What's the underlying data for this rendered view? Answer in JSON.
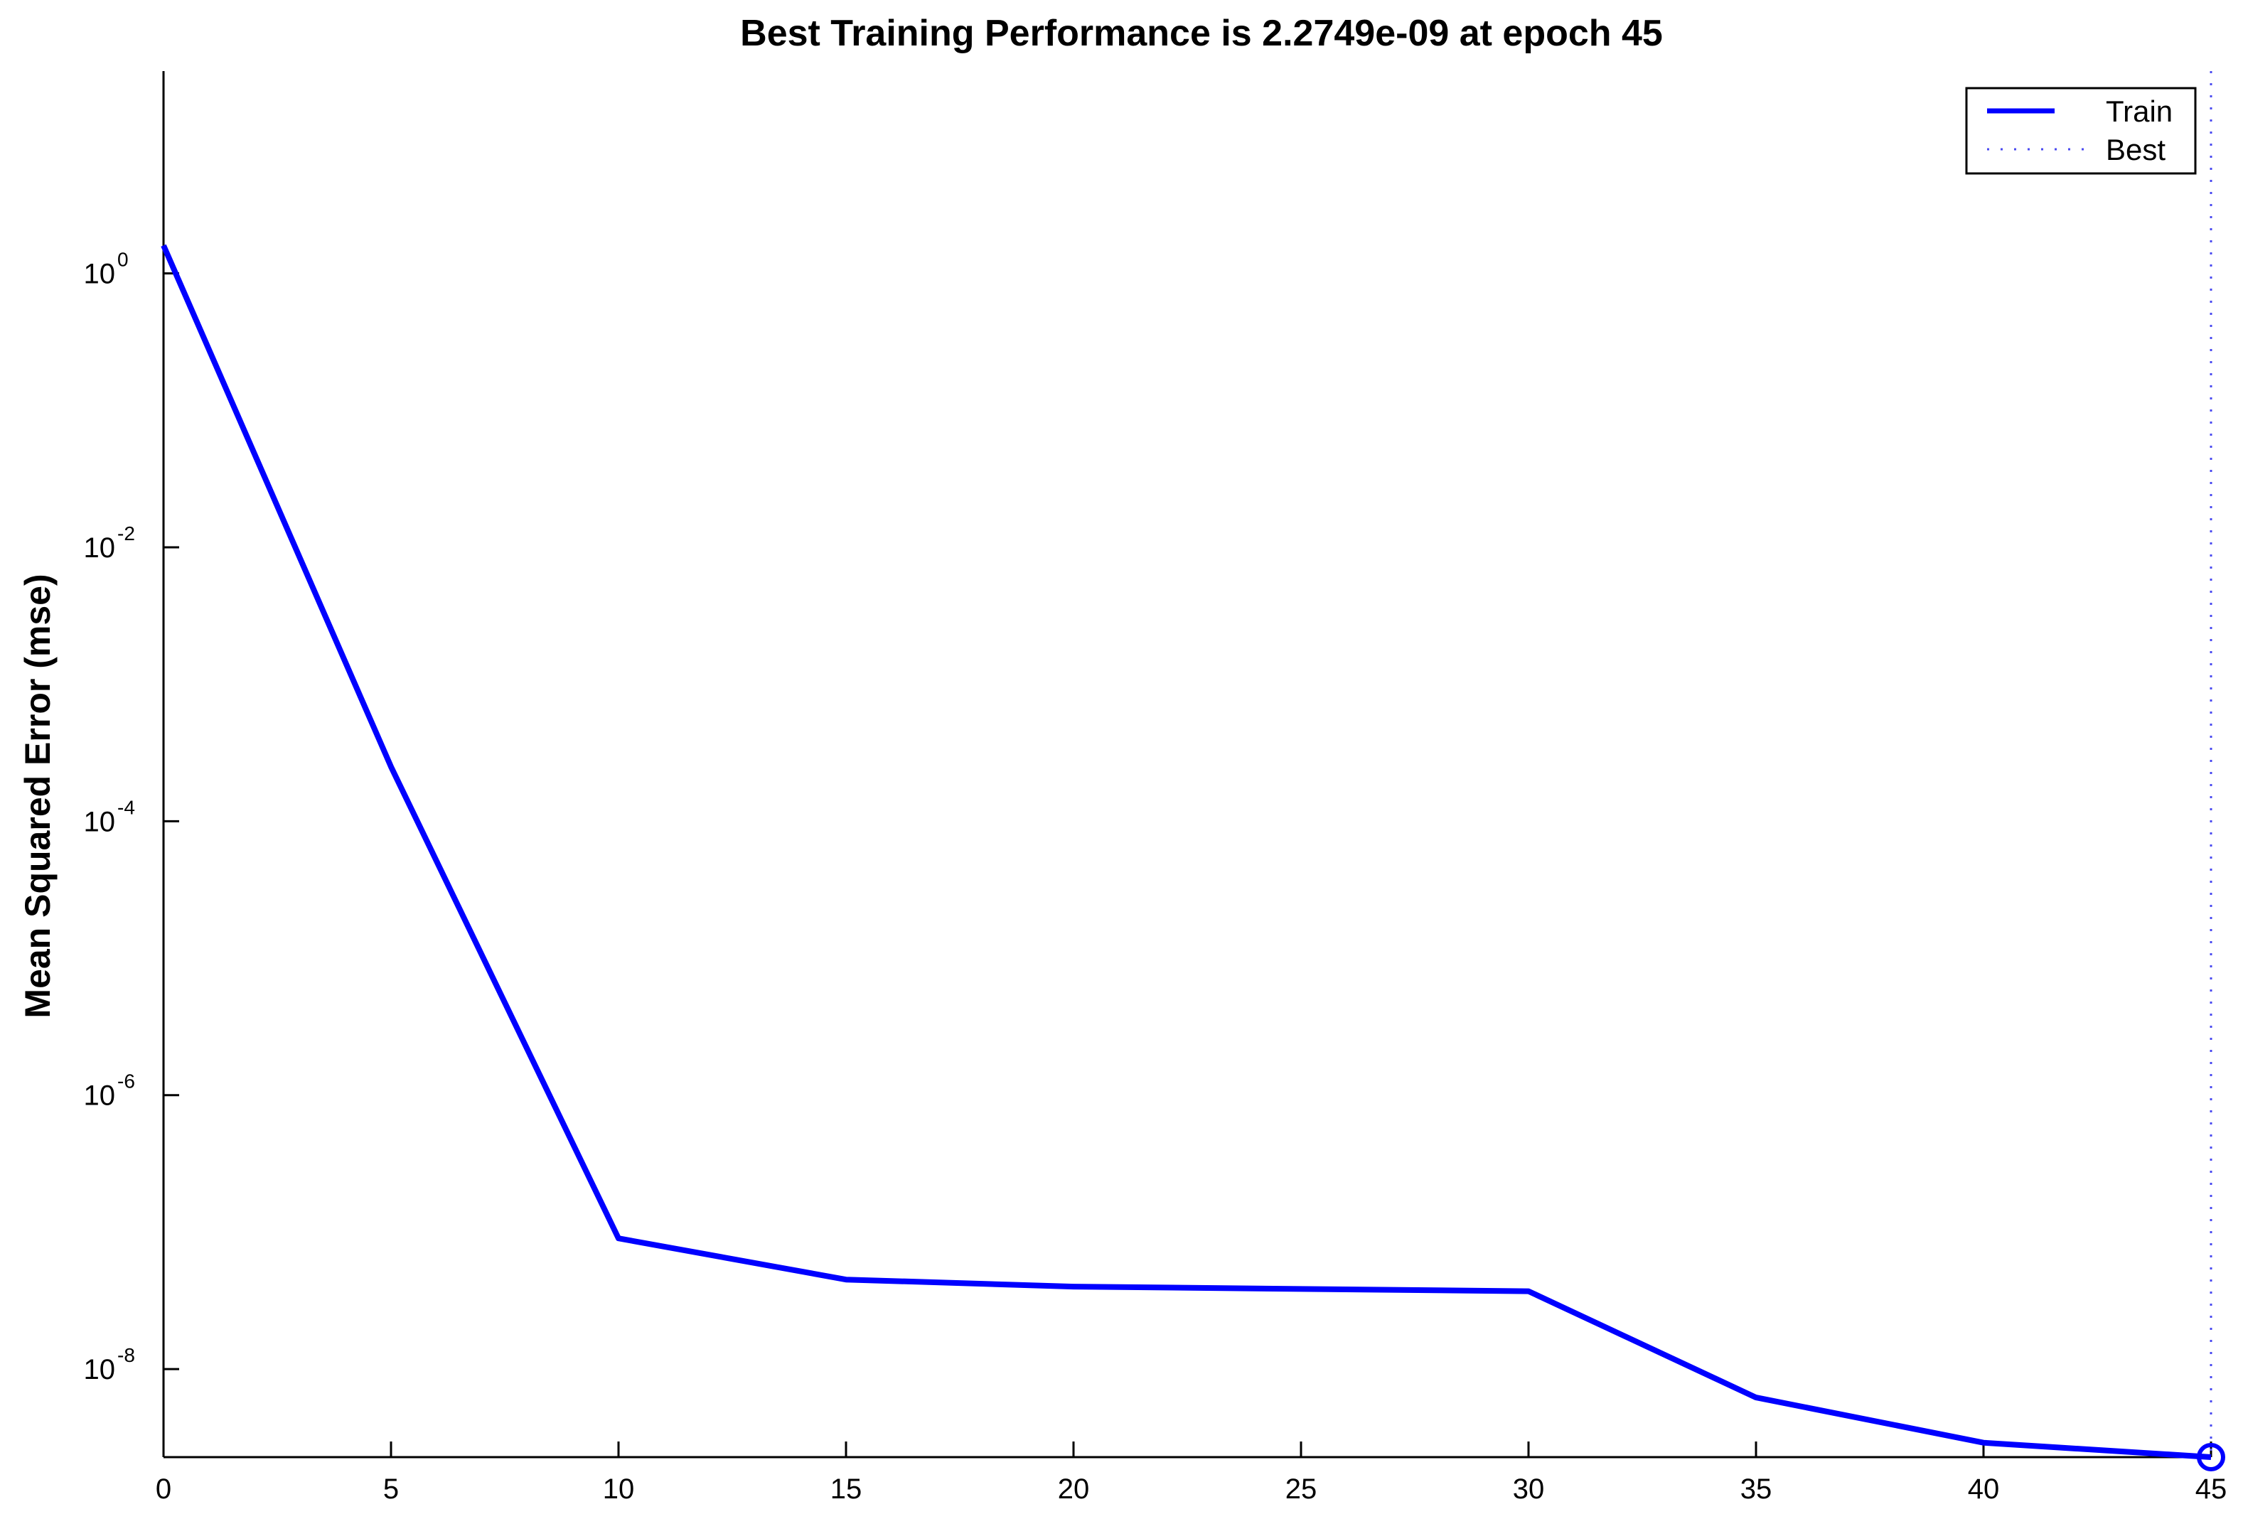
{
  "chart_data": {
    "type": "line",
    "title": "Best Training Performance is 2.2749e-09 at epoch 45",
    "xlabel": "",
    "ylabel": "Mean Squared Error  (mse)",
    "yscale": "log",
    "xlim": [
      0,
      45
    ],
    "ylim": [
      2.2749e-09,
      30
    ],
    "x_ticks": [
      0,
      5,
      10,
      15,
      20,
      25,
      30,
      35,
      40,
      45
    ],
    "y_ticks": [
      {
        "base": "10",
        "exp": "0",
        "value": 1
      },
      {
        "base": "10",
        "exp": "-2",
        "value": 0.01
      },
      {
        "base": "10",
        "exp": "-4",
        "value": 0.0001
      },
      {
        "base": "10",
        "exp": "-6",
        "value": 1e-06
      },
      {
        "base": "10",
        "exp": "-8",
        "value": 1e-08
      }
    ],
    "grid": false,
    "legend_position": "top-right",
    "legend": [
      {
        "label": "Train",
        "color": "#0000ff",
        "style": "solid"
      },
      {
        "label": "Best",
        "color": "#4a4af0",
        "style": "dotted"
      }
    ],
    "series": [
      {
        "name": "Train",
        "color": "#0000ff",
        "x": [
          0,
          5,
          10,
          15,
          20,
          30,
          35,
          40,
          45
        ],
        "y": [
          1.6,
          0.00025,
          9e-08,
          4.5e-08,
          4e-08,
          3.7e-08,
          6.2e-09,
          2.9e-09,
          2.2749e-09
        ]
      }
    ],
    "best": {
      "epoch": 45,
      "value": 2.2749e-09,
      "color": "#0000ff"
    }
  }
}
